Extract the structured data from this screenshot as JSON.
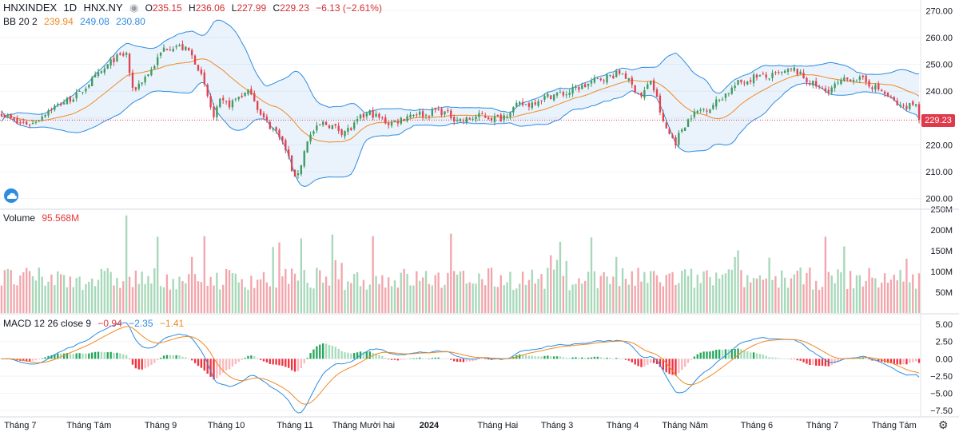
{
  "header": {
    "symbol": "HNXINDEX",
    "interval": "1D",
    "exchange": "HNX.NY",
    "open_label": "O",
    "open": "235.15",
    "high_label": "H",
    "high": "236.06",
    "low_label": "L",
    "low": "227.99",
    "close_label": "C",
    "close": "229.23",
    "change": "−6.13 (−2.61%)"
  },
  "bb_legend": {
    "name": "BB 20 2",
    "basis": "239.94",
    "upper": "249.08",
    "lower": "230.80"
  },
  "volume_legend": {
    "name": "Volume",
    "value": "95.568M"
  },
  "macd_legend": {
    "name": "MACD 12 26 close 9",
    "hist": "−0.94",
    "macd": "−2.35",
    "signal": "−1.41"
  },
  "last_price_tag": "229.23",
  "colors": {
    "up": "#3e9a5f",
    "down": "#e04350",
    "bb_band": "#2e8ce0",
    "bb_basis": "#f08a24",
    "vol_up": "#a7d8b9",
    "vol_down": "#f2a6ac",
    "macd_line": "#2e8ce0",
    "signal_line": "#f08a24"
  },
  "chart_data": {
    "type": "candlestick",
    "title": "HNXINDEX 1D HNX.NY",
    "price_axis": {
      "ylim": [
        196,
        274
      ],
      "ticks": [
        "270.00",
        "260.00",
        "250.00",
        "240.00",
        "230.00",
        "220.00",
        "210.00",
        "200.00"
      ]
    },
    "volume_axis": {
      "ylim": [
        0,
        250
      ],
      "ticks": [
        "250M",
        "200M",
        "150M",
        "100M",
        "50M"
      ]
    },
    "macd_axis": {
      "ylim": [
        -8.4,
        6.4
      ],
      "ticks": [
        "5.00",
        "2.50",
        "0.00",
        "−2.50",
        "−5.00",
        "−7.50"
      ]
    },
    "x_labels": [
      {
        "text": "Tháng 7",
        "bar": 6
      },
      {
        "text": "Tháng Tám",
        "bar": 28
      },
      {
        "text": "Tháng 9",
        "bar": 51
      },
      {
        "text": "Tháng 10",
        "bar": 72
      },
      {
        "text": "Tháng 11",
        "bar": 94
      },
      {
        "text": "Tháng Mười hai",
        "bar": 116
      },
      {
        "text": "2024",
        "bar": 137
      },
      {
        "text": "Tháng Hai",
        "bar": 159
      },
      {
        "text": "Tháng 3",
        "bar": 178
      },
      {
        "text": "Tháng 4",
        "bar": 199
      },
      {
        "text": "Tháng Năm",
        "bar": 219
      },
      {
        "text": "Tháng 6",
        "bar": 242
      },
      {
        "text": "Tháng 7",
        "bar": 263
      },
      {
        "text": "Tháng Tám",
        "bar": 286
      }
    ],
    "close_anchors": [
      [
        0,
        232
      ],
      [
        5,
        228
      ],
      [
        10,
        228
      ],
      [
        15,
        233
      ],
      [
        20,
        236
      ],
      [
        25,
        239
      ],
      [
        28,
        243
      ],
      [
        32,
        247
      ],
      [
        36,
        252
      ],
      [
        40,
        254
      ],
      [
        42,
        240
      ],
      [
        45,
        244
      ],
      [
        48,
        248
      ],
      [
        52,
        256
      ],
      [
        56,
        257
      ],
      [
        60,
        255
      ],
      [
        63,
        249
      ],
      [
        66,
        238
      ],
      [
        68,
        230
      ],
      [
        70,
        236
      ],
      [
        73,
        235
      ],
      [
        76,
        238
      ],
      [
        80,
        240
      ],
      [
        83,
        231
      ],
      [
        86,
        227
      ],
      [
        89,
        224
      ],
      [
        92,
        215
      ],
      [
        94,
        207
      ],
      [
        96,
        213
      ],
      [
        98,
        222
      ],
      [
        100,
        225
      ],
      [
        103,
        228
      ],
      [
        106,
        227
      ],
      [
        109,
        225
      ],
      [
        112,
        226
      ],
      [
        115,
        230
      ],
      [
        118,
        232
      ],
      [
        121,
        230
      ],
      [
        124,
        228
      ],
      [
        127,
        229
      ],
      [
        130,
        231
      ],
      [
        133,
        232
      ],
      [
        136,
        231
      ],
      [
        139,
        233
      ],
      [
        142,
        232
      ],
      [
        145,
        230
      ],
      [
        148,
        229
      ],
      [
        151,
        230
      ],
      [
        154,
        231
      ],
      [
        157,
        230
      ],
      [
        160,
        230
      ],
      [
        163,
        233
      ],
      [
        166,
        235
      ],
      [
        169,
        235
      ],
      [
        172,
        237
      ],
      [
        175,
        238
      ],
      [
        178,
        239
      ],
      [
        181,
        239
      ],
      [
        184,
        241
      ],
      [
        187,
        242
      ],
      [
        190,
        244
      ],
      [
        193,
        245
      ],
      [
        196,
        246
      ],
      [
        199,
        247
      ],
      [
        202,
        242
      ],
      [
        205,
        238
      ],
      [
        208,
        244
      ],
      [
        210,
        237
      ],
      [
        212,
        228
      ],
      [
        214,
        224
      ],
      [
        216,
        221
      ],
      [
        218,
        226
      ],
      [
        221,
        231
      ],
      [
        224,
        233
      ],
      [
        227,
        234
      ],
      [
        230,
        237
      ],
      [
        233,
        240
      ],
      [
        236,
        243
      ],
      [
        239,
        244
      ],
      [
        242,
        246
      ],
      [
        245,
        245
      ],
      [
        248,
        246
      ],
      [
        251,
        247
      ],
      [
        254,
        248
      ],
      [
        256,
        246
      ],
      [
        258,
        244
      ],
      [
        261,
        242
      ],
      [
        264,
        240
      ],
      [
        267,
        242
      ],
      [
        270,
        244
      ],
      [
        273,
        245
      ],
      [
        276,
        244
      ],
      [
        279,
        242
      ],
      [
        282,
        240
      ],
      [
        285,
        237
      ],
      [
        288,
        234
      ],
      [
        291,
        235
      ],
      [
        293,
        235.15
      ],
      [
        294,
        229.23
      ]
    ],
    "last": {
      "open": 235.15,
      "high": 236.06,
      "low": 227.99,
      "close": 229.23
    },
    "bb_period": 20,
    "bb_mult": 2,
    "macd_fast": 12,
    "macd_slow": 26,
    "macd_signal": 9,
    "bar_count": 295
  }
}
